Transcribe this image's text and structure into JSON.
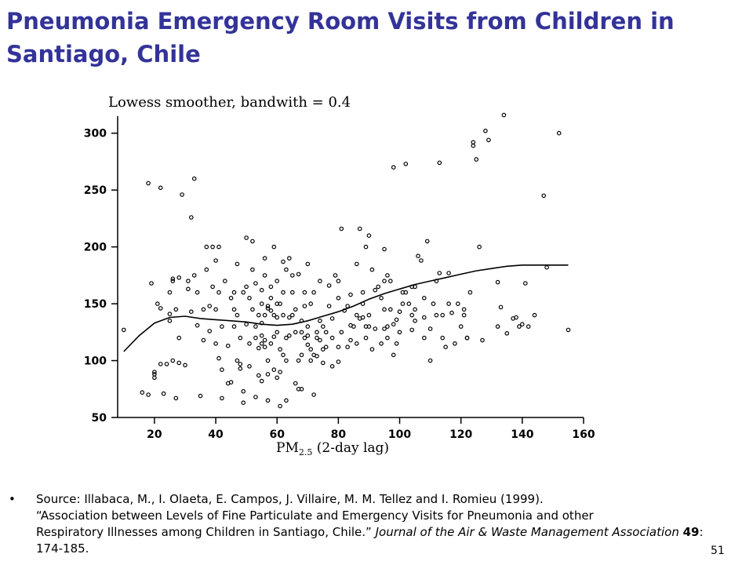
{
  "slide": {
    "title": "Pneumonia Emergency Room Visits from Children in Santiago, Chile",
    "page_number": "51"
  },
  "source": {
    "bullet": "•",
    "line1": "Source: Illabaca, M., I. Olaeta, E. Campos, J. Villaire, M. M. Tellez and I. Romieu (1999).",
    "line2": "“Association between Levels of Fine Particulate and Emergency Visits for Pneumonia and other",
    "line3": "Respiratory Illnesses among Children in Santiago, Chile.” ",
    "journal": "Journal of the Air & Waste Management Association",
    "volume": "49",
    "pages": ": 174-185."
  },
  "chart_data": {
    "type": "scatter",
    "title": "Lowess smoother, bandwith = 0.4",
    "xlabel_main": "PM",
    "xlabel_sub": "2.5",
    "xlabel_rest": " (2-day lag)",
    "ylabel": "",
    "xlim": [
      8,
      160
    ],
    "ylim": [
      50,
      315
    ],
    "xticks": [
      20,
      40,
      60,
      80,
      100,
      120,
      140,
      160
    ],
    "yticks": [
      50,
      100,
      150,
      200,
      250,
      300
    ],
    "grid": false,
    "colors": {
      "points": "#000000",
      "smoother": "#000000",
      "title": "#333399"
    },
    "points": [
      [
        10,
        127
      ],
      [
        16,
        72
      ],
      [
        18,
        70
      ],
      [
        18,
        256
      ],
      [
        19,
        168
      ],
      [
        20,
        88
      ],
      [
        20,
        85
      ],
      [
        20,
        90
      ],
      [
        21,
        150
      ],
      [
        22,
        252
      ],
      [
        22,
        97
      ],
      [
        22,
        146
      ],
      [
        23,
        71
      ],
      [
        24,
        97
      ],
      [
        25,
        135
      ],
      [
        25,
        141
      ],
      [
        25,
        160
      ],
      [
        26,
        172
      ],
      [
        26,
        170
      ],
      [
        26,
        100
      ],
      [
        27,
        145
      ],
      [
        27,
        67
      ],
      [
        28,
        173
      ],
      [
        28,
        98
      ],
      [
        28,
        120
      ],
      [
        29,
        246
      ],
      [
        30,
        96
      ],
      [
        31,
        163
      ],
      [
        31,
        170
      ],
      [
        32,
        226
      ],
      [
        32,
        143
      ],
      [
        33,
        175
      ],
      [
        33,
        260
      ],
      [
        34,
        131
      ],
      [
        34,
        160
      ],
      [
        35,
        69
      ],
      [
        36,
        145
      ],
      [
        36,
        118
      ],
      [
        37,
        180
      ],
      [
        37,
        200
      ],
      [
        38,
        148
      ],
      [
        38,
        126
      ],
      [
        39,
        165
      ],
      [
        39,
        200
      ],
      [
        40,
        188
      ],
      [
        40,
        145
      ],
      [
        40,
        115
      ],
      [
        41,
        102
      ],
      [
        41,
        200
      ],
      [
        41,
        160
      ],
      [
        42,
        67
      ],
      [
        42,
        92
      ],
      [
        42,
        130
      ],
      [
        43,
        170
      ],
      [
        44,
        113
      ],
      [
        44,
        80
      ],
      [
        45,
        155
      ],
      [
        45,
        81
      ],
      [
        46,
        145
      ],
      [
        46,
        130
      ],
      [
        46,
        160
      ],
      [
        47,
        185
      ],
      [
        47,
        100
      ],
      [
        47,
        140
      ],
      [
        48,
        97
      ],
      [
        48,
        93
      ],
      [
        48,
        120
      ],
      [
        49,
        160
      ],
      [
        49,
        73
      ],
      [
        49,
        63
      ],
      [
        50,
        208
      ],
      [
        50,
        165
      ],
      [
        50,
        132
      ],
      [
        51,
        115
      ],
      [
        51,
        95
      ],
      [
        51,
        155
      ],
      [
        52,
        205
      ],
      [
        52,
        180
      ],
      [
        52,
        145
      ],
      [
        53,
        168
      ],
      [
        53,
        120
      ],
      [
        53,
        130
      ],
      [
        53,
        68
      ],
      [
        54,
        140
      ],
      [
        54,
        87
      ],
      [
        54,
        111
      ],
      [
        55,
        82
      ],
      [
        55,
        115
      ],
      [
        55,
        150
      ],
      [
        55,
        162
      ],
      [
        55,
        122
      ],
      [
        55,
        133
      ],
      [
        56,
        190
      ],
      [
        56,
        112
      ],
      [
        56,
        118
      ],
      [
        56,
        140
      ],
      [
        56,
        175
      ],
      [
        57,
        65
      ],
      [
        57,
        88
      ],
      [
        57,
        146
      ],
      [
        57,
        148
      ],
      [
        57,
        100
      ],
      [
        58,
        155
      ],
      [
        58,
        144
      ],
      [
        58,
        115
      ],
      [
        58,
        165
      ],
      [
        59,
        92
      ],
      [
        59,
        121
      ],
      [
        59,
        140
      ],
      [
        59,
        200
      ],
      [
        60,
        138
      ],
      [
        60,
        150
      ],
      [
        60,
        85
      ],
      [
        60,
        170
      ],
      [
        60,
        125
      ],
      [
        61,
        110
      ],
      [
        61,
        90
      ],
      [
        61,
        60
      ],
      [
        61,
        150
      ],
      [
        62,
        160
      ],
      [
        62,
        187
      ],
      [
        62,
        105
      ],
      [
        62,
        140
      ],
      [
        63,
        65
      ],
      [
        63,
        180
      ],
      [
        63,
        120
      ],
      [
        63,
        100
      ],
      [
        64,
        122
      ],
      [
        64,
        190
      ],
      [
        64,
        138
      ],
      [
        65,
        160
      ],
      [
        65,
        140
      ],
      [
        65,
        175
      ],
      [
        66,
        145
      ],
      [
        66,
        125
      ],
      [
        66,
        80
      ],
      [
        67,
        75
      ],
      [
        67,
        176
      ],
      [
        67,
        100
      ],
      [
        68,
        135
      ],
      [
        68,
        125
      ],
      [
        68,
        75
      ],
      [
        68,
        105
      ],
      [
        69,
        160
      ],
      [
        69,
        148
      ],
      [
        69,
        120
      ],
      [
        70,
        130
      ],
      [
        70,
        114
      ],
      [
        70,
        122
      ],
      [
        70,
        185
      ],
      [
        71,
        150
      ],
      [
        71,
        110
      ],
      [
        71,
        100
      ],
      [
        72,
        105
      ],
      [
        72,
        70
      ],
      [
        72,
        160
      ],
      [
        73,
        125
      ],
      [
        73,
        120
      ],
      [
        73,
        104
      ],
      [
        74,
        135
      ],
      [
        74,
        170
      ],
      [
        74,
        118
      ],
      [
        75,
        98
      ],
      [
        75,
        110
      ],
      [
        75,
        130
      ],
      [
        76,
        112
      ],
      [
        76,
        125
      ],
      [
        77,
        148
      ],
      [
        77,
        166
      ],
      [
        78,
        95
      ],
      [
        78,
        137
      ],
      [
        78,
        120
      ],
      [
        79,
        175
      ],
      [
        80,
        155
      ],
      [
        80,
        170
      ],
      [
        80,
        112
      ],
      [
        80,
        99
      ],
      [
        81,
        216
      ],
      [
        81,
        125
      ],
      [
        82,
        144
      ],
      [
        83,
        112
      ],
      [
        83,
        148
      ],
      [
        84,
        131
      ],
      [
        84,
        158
      ],
      [
        84,
        118
      ],
      [
        85,
        130
      ],
      [
        86,
        185
      ],
      [
        86,
        140
      ],
      [
        86,
        115
      ],
      [
        87,
        216
      ],
      [
        87,
        137
      ],
      [
        88,
        160
      ],
      [
        88,
        138
      ],
      [
        88,
        150
      ],
      [
        89,
        120
      ],
      [
        89,
        130
      ],
      [
        89,
        200
      ],
      [
        90,
        210
      ],
      [
        90,
        130
      ],
      [
        90,
        140
      ],
      [
        91,
        180
      ],
      [
        91,
        110
      ],
      [
        92,
        162
      ],
      [
        92,
        128
      ],
      [
        93,
        165
      ],
      [
        94,
        115
      ],
      [
        94,
        155
      ],
      [
        95,
        198
      ],
      [
        95,
        170
      ],
      [
        95,
        145
      ],
      [
        95,
        128
      ],
      [
        96,
        175
      ],
      [
        96,
        130
      ],
      [
        96,
        120
      ],
      [
        97,
        145
      ],
      [
        97,
        170
      ],
      [
        98,
        270
      ],
      [
        98,
        105
      ],
      [
        98,
        132
      ],
      [
        99,
        136
      ],
      [
        99,
        115
      ],
      [
        100,
        125
      ],
      [
        100,
        143
      ],
      [
        101,
        150
      ],
      [
        101,
        160
      ],
      [
        102,
        160
      ],
      [
        102,
        273
      ],
      [
        103,
        150
      ],
      [
        104,
        140
      ],
      [
        104,
        165
      ],
      [
        104,
        127
      ],
      [
        105,
        165
      ],
      [
        105,
        145
      ],
      [
        105,
        135
      ],
      [
        106,
        192
      ],
      [
        107,
        188
      ],
      [
        108,
        155
      ],
      [
        108,
        138
      ],
      [
        108,
        120
      ],
      [
        109,
        205
      ],
      [
        110,
        100
      ],
      [
        110,
        128
      ],
      [
        111,
        150
      ],
      [
        112,
        140
      ],
      [
        112,
        170
      ],
      [
        113,
        177
      ],
      [
        113,
        274
      ],
      [
        114,
        140
      ],
      [
        114,
        120
      ],
      [
        115,
        112
      ],
      [
        116,
        150
      ],
      [
        116,
        177
      ],
      [
        117,
        142
      ],
      [
        118,
        115
      ],
      [
        119,
        150
      ],
      [
        120,
        130
      ],
      [
        121,
        140
      ],
      [
        121,
        145
      ],
      [
        122,
        120
      ],
      [
        122,
        120
      ],
      [
        123,
        160
      ],
      [
        124,
        289
      ],
      [
        124,
        292
      ],
      [
        125,
        277
      ],
      [
        126,
        200
      ],
      [
        127,
        118
      ],
      [
        128,
        302
      ],
      [
        129,
        294
      ],
      [
        132,
        169
      ],
      [
        132,
        130
      ],
      [
        133,
        147
      ],
      [
        134,
        316
      ],
      [
        135,
        124
      ],
      [
        137,
        137
      ],
      [
        138,
        138
      ],
      [
        139,
        130
      ],
      [
        140,
        132
      ],
      [
        141,
        168
      ],
      [
        142,
        130
      ],
      [
        144,
        140
      ],
      [
        147,
        245
      ],
      [
        148,
        182
      ],
      [
        152,
        300
      ],
      [
        155,
        127
      ]
    ],
    "smoother": [
      [
        10,
        108
      ],
      [
        15,
        122
      ],
      [
        20,
        133
      ],
      [
        25,
        138
      ],
      [
        30,
        139
      ],
      [
        35,
        137
      ],
      [
        40,
        136
      ],
      [
        45,
        135
      ],
      [
        50,
        134
      ],
      [
        55,
        132
      ],
      [
        60,
        131
      ],
      [
        65,
        132
      ],
      [
        70,
        135
      ],
      [
        75,
        139
      ],
      [
        80,
        143
      ],
      [
        85,
        148
      ],
      [
        90,
        154
      ],
      [
        95,
        159
      ],
      [
        100,
        163
      ],
      [
        105,
        167
      ],
      [
        110,
        170
      ],
      [
        115,
        173
      ],
      [
        120,
        176
      ],
      [
        125,
        179
      ],
      [
        130,
        181
      ],
      [
        135,
        183
      ],
      [
        140,
        184
      ],
      [
        145,
        184
      ],
      [
        150,
        184
      ],
      [
        155,
        184
      ]
    ]
  }
}
